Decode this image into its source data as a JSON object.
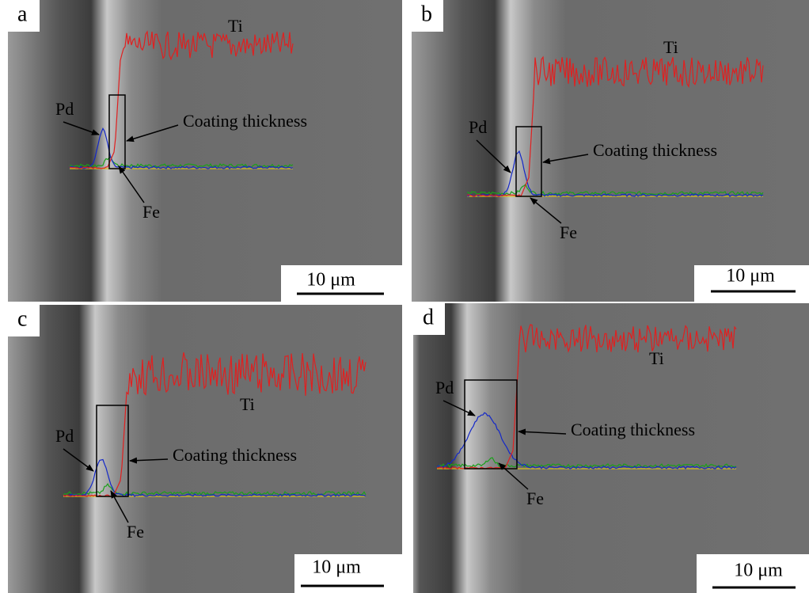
{
  "panels": [
    {
      "label": "a",
      "ti": "Ti",
      "pd": "Pd",
      "fe": "Fe",
      "coating": "Coating thickness",
      "scale": "10 μm"
    },
    {
      "label": "b",
      "ti": "Ti",
      "pd": "Pd",
      "fe": "Fe",
      "coating": "Coating thickness",
      "scale": "10 μm"
    },
    {
      "label": "c",
      "ti": "Ti",
      "pd": "Pd",
      "fe": "Fe",
      "coating": "Coating thickness",
      "scale": "10 μm"
    },
    {
      "label": "d",
      "ti": "Ti",
      "pd": "Pd",
      "fe": "Fe",
      "coating": "Coating thickness",
      "scale": "10 μm"
    }
  ]
}
